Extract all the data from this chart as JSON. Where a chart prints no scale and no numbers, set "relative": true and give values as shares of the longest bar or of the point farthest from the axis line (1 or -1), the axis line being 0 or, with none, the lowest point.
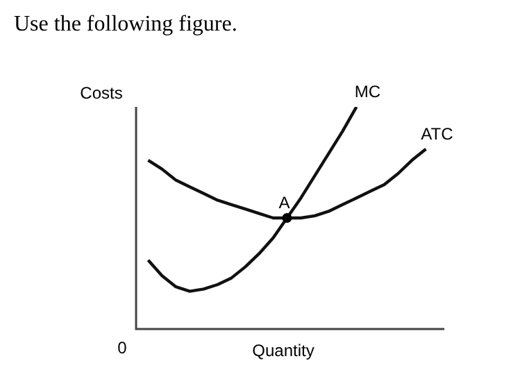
{
  "chart_data": {
    "type": "line",
    "relative": true,
    "title": "Use the following figure.",
    "xlabel": "Quantity",
    "ylabel": "Costs",
    "categories": [
      null,
      null,
      null,
      null,
      null,
      null,
      null,
      null,
      null,
      null,
      null,
      null,
      null,
      null,
      null,
      null,
      null,
      null,
      null,
      null,
      null
    ],
    "series": [
      {
        "name": "MC",
        "color": "#111111",
        "values": [
          0.31,
          0.24,
          0.19,
          0.17,
          0.18,
          0.2,
          0.23,
          0.28,
          0.34,
          0.41,
          0.5,
          0.59,
          0.69,
          0.79,
          0.89,
          1.0,
          null,
          null,
          null,
          null,
          null
        ]
      },
      {
        "name": "ATC",
        "color": "#111111",
        "values": [
          0.76,
          0.72,
          0.67,
          0.64,
          0.61,
          0.58,
          0.56,
          0.54,
          0.52,
          0.5,
          0.5,
          0.5,
          0.51,
          0.53,
          0.56,
          0.59,
          0.62,
          0.65,
          0.7,
          0.76,
          0.81
        ]
      }
    ],
    "annotations": [
      "0",
      {
        "text": "A",
        "y": 0.5
      }
    ],
    "legend": false,
    "marker": "none"
  }
}
